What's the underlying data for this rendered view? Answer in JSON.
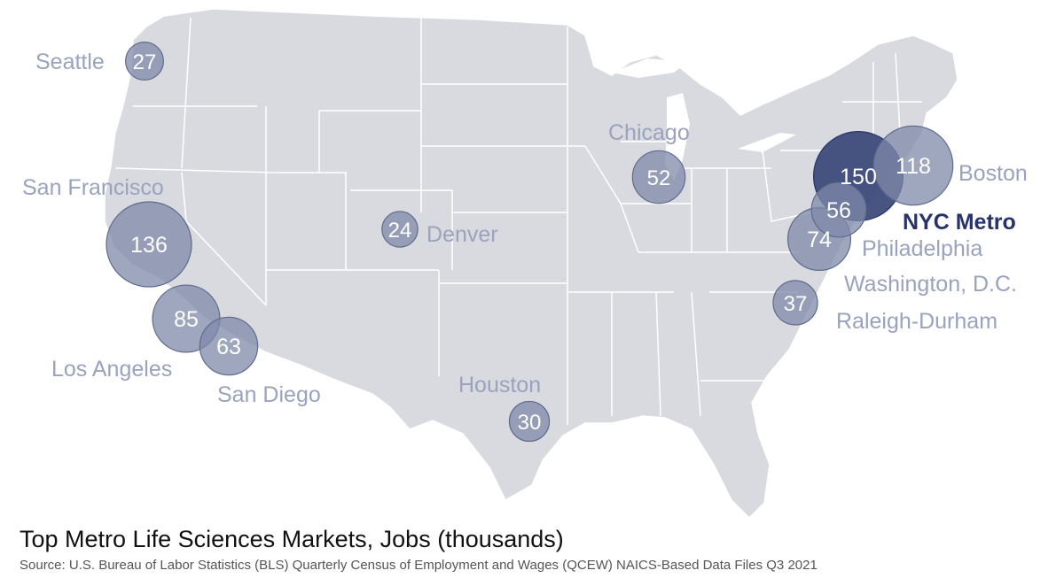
{
  "colors": {
    "land": "#d9dadf",
    "border": "#ffffff",
    "bubble": "#7f8aa9",
    "bubble_stroke": "#5f6a8c",
    "bubble_highlight": "#3a4676",
    "label": "#9aa3bd",
    "label_highlight": "#27336a",
    "bubble_text": "#ffffff"
  },
  "title": "Top Metro Life Sciences Markets, Jobs (thousands)",
  "source": "Source: U.S. Bureau of Labor Statistics (BLS) Quarterly Census of Employment and Wages (QCEW) NAICS-Based Data Files Q3 2021",
  "unit": "Jobs (thousands)",
  "metros": [
    {
      "name": "Seattle",
      "jobs": 27,
      "highlight": false
    },
    {
      "name": "San Francisco",
      "jobs": 136,
      "highlight": false
    },
    {
      "name": "Los Angeles",
      "jobs": 85,
      "highlight": false
    },
    {
      "name": "San Diego",
      "jobs": 63,
      "highlight": false
    },
    {
      "name": "Denver",
      "jobs": 24,
      "highlight": false
    },
    {
      "name": "Houston",
      "jobs": 30,
      "highlight": false
    },
    {
      "name": "Chicago",
      "jobs": 52,
      "highlight": false
    },
    {
      "name": "Raleigh-Durham",
      "jobs": 37,
      "highlight": false
    },
    {
      "name": "Washington, D.C.",
      "jobs": 74,
      "highlight": false
    },
    {
      "name": "Philadelphia",
      "jobs": 56,
      "highlight": false
    },
    {
      "name": "NYC Metro",
      "jobs": 150,
      "highlight": true
    },
    {
      "name": "Boston",
      "jobs": 118,
      "highlight": false
    }
  ]
}
